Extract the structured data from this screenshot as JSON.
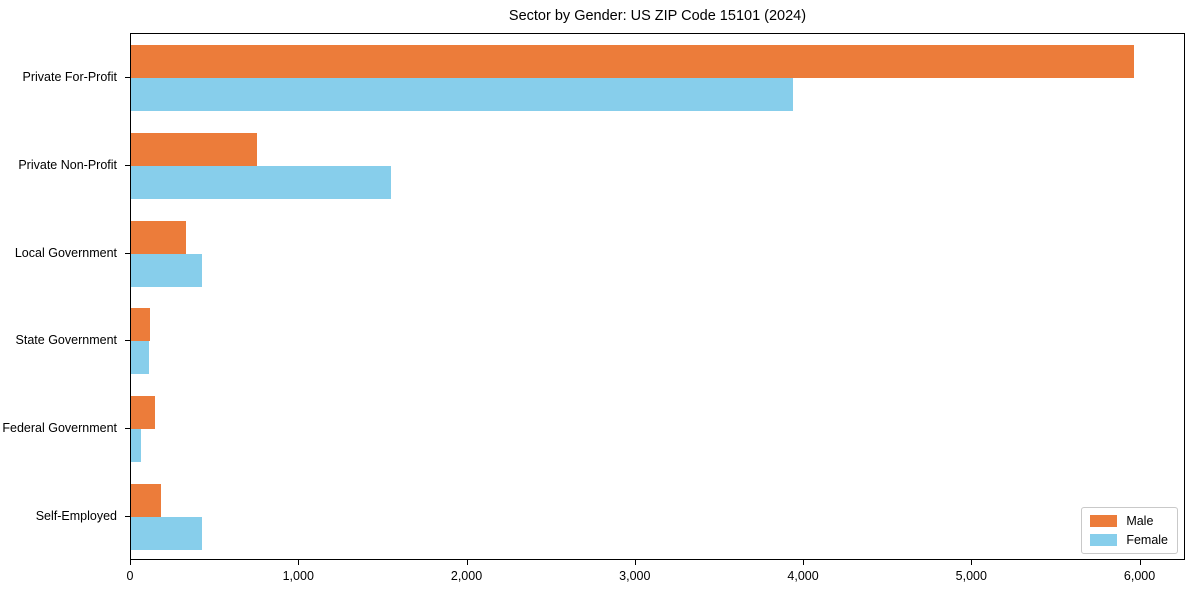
{
  "chart_data": {
    "type": "bar",
    "orientation": "horizontal",
    "title": "Sector by Gender: US ZIP Code 15101 (2024)",
    "categories": [
      "Private For-Profit",
      "Private Non-Profit",
      "Local Government",
      "State Government",
      "Federal Government",
      "Self-Employed"
    ],
    "series": [
      {
        "name": "Male",
        "color": "#EC7C3A",
        "values": [
          5970,
          750,
          330,
          115,
          145,
          180
        ]
      },
      {
        "name": "Female",
        "color": "#87CEEB",
        "values": [
          3940,
          1550,
          420,
          105,
          60,
          420
        ]
      }
    ],
    "xlabel": "",
    "ylabel": "",
    "xlim": [
      0,
      6270
    ],
    "xticks": [
      0,
      1000,
      2000,
      3000,
      4000,
      5000,
      6000
    ],
    "xtick_labels": [
      "0",
      "1,000",
      "2,000",
      "3,000",
      "4,000",
      "5,000",
      "6,000"
    ],
    "grid": false,
    "legend": {
      "position": "lower right",
      "labels": [
        "Male",
        "Female"
      ]
    }
  }
}
